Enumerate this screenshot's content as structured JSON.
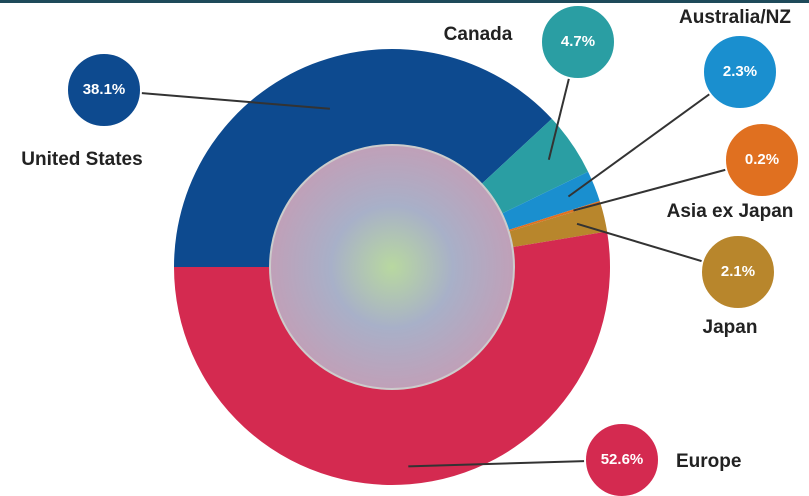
{
  "chart_data": {
    "type": "pie",
    "categories": [
      "United States",
      "Canada",
      "Australia/NZ",
      "Asia ex Japan",
      "Japan",
      "Europe"
    ],
    "values": [
      38.1,
      4.7,
      2.3,
      0.2,
      2.1,
      52.6
    ],
    "value_labels": [
      "38.1%",
      "4.7%",
      "2.3%",
      "0.2%",
      "2.1%",
      "52.6%"
    ],
    "colors": [
      "#0d4a8f",
      "#2a9ea3",
      "#1a8fcf",
      "#e07020",
      "#b8862c",
      "#d42a50"
    ]
  }
}
